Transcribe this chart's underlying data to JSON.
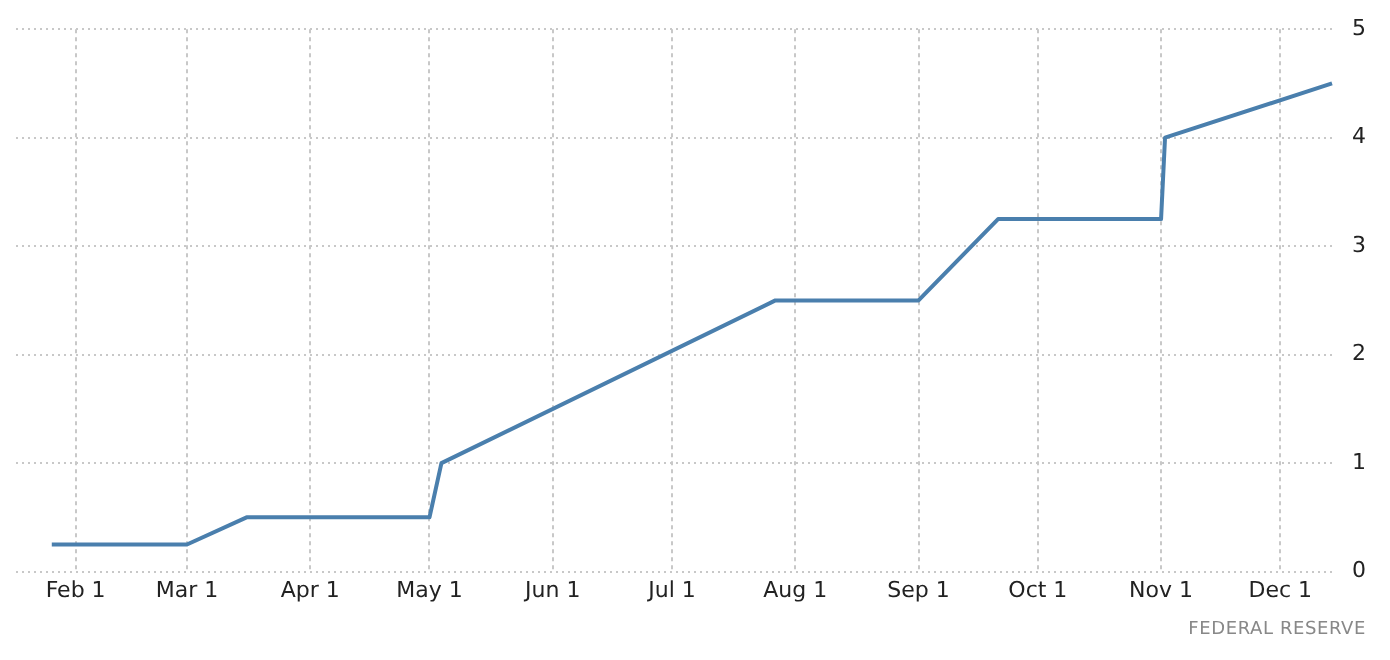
{
  "chart_data": {
    "type": "line",
    "x": [
      "--01-26",
      "--03-01",
      "--03-16",
      "--05-01",
      "--05-04",
      "--07-27",
      "--09-01",
      "--09-21",
      "--11-01",
      "--11-02",
      "--12-14"
    ],
    "series": [
      {
        "color": "#4a7fad",
        "values": [
          0.25,
          0.25,
          0.5,
          0.5,
          1,
          2.5,
          2.5,
          3.25,
          3.25,
          4,
          4.5
        ]
      }
    ],
    "xlim": [
      "--01-17",
      "--12-15"
    ],
    "xticks": [
      {
        "value": "--02-01",
        "label": "Feb 1"
      },
      {
        "value": "--03-01",
        "label": "Mar 1"
      },
      {
        "value": "--04-01",
        "label": "Apr 1"
      },
      {
        "value": "--05-01",
        "label": "May 1"
      },
      {
        "value": "--06-01",
        "label": "Jun 1"
      },
      {
        "value": "--07-01",
        "label": "Jul 1"
      },
      {
        "value": "--08-01",
        "label": "Aug 1"
      },
      {
        "value": "--09-01",
        "label": "Sep 1"
      },
      {
        "value": "--10-01",
        "label": "Oct 1"
      },
      {
        "value": "--11-01",
        "label": "Nov 1"
      },
      {
        "value": "--12-01",
        "label": "Dec 1"
      }
    ],
    "ylim": [
      0,
      5
    ],
    "yticks": [
      0,
      1,
      2,
      3,
      4,
      5
    ],
    "grid": true,
    "marker": "none",
    "line_style": "solid",
    "annotations": [
      "FEDERAL RESERVE"
    ]
  }
}
